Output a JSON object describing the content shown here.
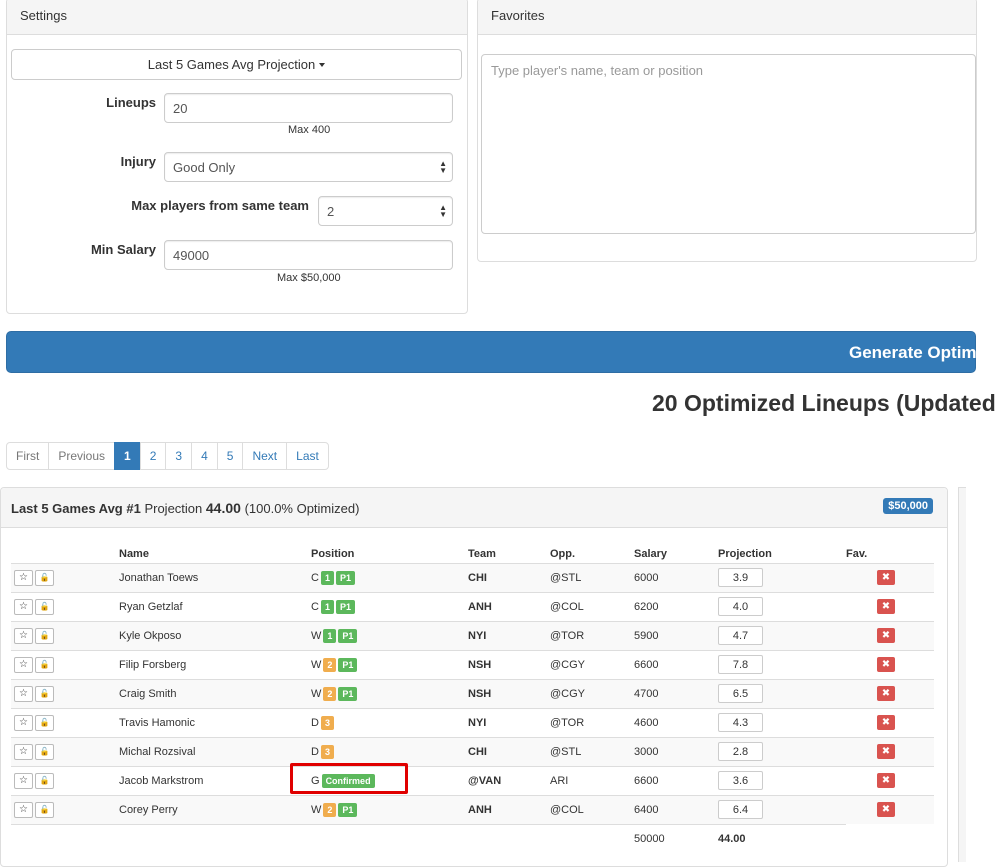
{
  "settings": {
    "title": "Settings",
    "projection_dropdown": "Last 5 Games Avg Projection",
    "lineups_label": "Lineups",
    "lineups_value": "20",
    "lineups_help": "Max 400",
    "injury_label": "Injury",
    "injury_value": "Good Only",
    "max_team_label": "Max players from same team",
    "max_team_value": "2",
    "min_salary_label": "Min Salary",
    "min_salary_value": "49000",
    "min_salary_help": "Max $50,000"
  },
  "favorites": {
    "title": "Favorites",
    "placeholder": "Type player's name, team or position"
  },
  "generate_button": "Generate Optim",
  "results_heading": "20 Optimized Lineups (Updated",
  "pagination": [
    "First",
    "Previous",
    "1",
    "2",
    "3",
    "4",
    "5",
    "Next",
    "Last"
  ],
  "lineup": {
    "title_prefix": "Last 5 Games Avg #1",
    "title_proj_label": "Projection",
    "title_proj_value": "44.00",
    "title_optimized": "(100.0% Optimized)",
    "salary_badge": "$50,000",
    "columns": [
      "Name",
      "Position",
      "Team",
      "Opp.",
      "Salary",
      "Projection",
      "Fav."
    ],
    "rows": [
      {
        "name": "Jonathan Toews",
        "pos": "C",
        "tags": [
          {
            "t": "1",
            "c": "green"
          },
          {
            "t": "P1",
            "c": "green"
          }
        ],
        "team": "CHI",
        "opp": "@STL",
        "salary": "6000",
        "proj": "3.9"
      },
      {
        "name": "Ryan Getzlaf",
        "pos": "C",
        "tags": [
          {
            "t": "1",
            "c": "green"
          },
          {
            "t": "P1",
            "c": "green"
          }
        ],
        "team": "ANH",
        "opp": "@COL",
        "salary": "6200",
        "proj": "4.0"
      },
      {
        "name": "Kyle Okposo",
        "pos": "W",
        "tags": [
          {
            "t": "1",
            "c": "green"
          },
          {
            "t": "P1",
            "c": "green"
          }
        ],
        "team": "NYI",
        "opp": "@TOR",
        "salary": "5900",
        "proj": "4.7"
      },
      {
        "name": "Filip Forsberg",
        "pos": "W",
        "tags": [
          {
            "t": "2",
            "c": "orange"
          },
          {
            "t": "P1",
            "c": "green"
          }
        ],
        "team": "NSH",
        "opp": "@CGY",
        "salary": "6600",
        "proj": "7.8"
      },
      {
        "name": "Craig Smith",
        "pos": "W",
        "tags": [
          {
            "t": "2",
            "c": "orange"
          },
          {
            "t": "P1",
            "c": "green"
          }
        ],
        "team": "NSH",
        "opp": "@CGY",
        "salary": "4700",
        "proj": "6.5"
      },
      {
        "name": "Travis Hamonic",
        "pos": "D",
        "tags": [
          {
            "t": "3",
            "c": "orange"
          }
        ],
        "team": "NYI",
        "opp": "@TOR",
        "salary": "4600",
        "proj": "4.3"
      },
      {
        "name": "Michal Rozsival",
        "pos": "D",
        "tags": [
          {
            "t": "3",
            "c": "orange"
          }
        ],
        "team": "CHI",
        "opp": "@STL",
        "salary": "3000",
        "proj": "2.8"
      },
      {
        "name": "Jacob Markstrom",
        "pos": "G",
        "tags": [
          {
            "t": "Confirmed",
            "c": "green"
          }
        ],
        "team": "@VAN",
        "opp": "ARI",
        "salary": "6600",
        "proj": "3.6"
      },
      {
        "name": "Corey Perry",
        "pos": "W",
        "tags": [
          {
            "t": "2",
            "c": "orange"
          },
          {
            "t": "P1",
            "c": "green"
          }
        ],
        "team": "ANH",
        "opp": "@COL",
        "salary": "6400",
        "proj": "6.4"
      }
    ],
    "total_salary": "50000",
    "total_proj": "44.00"
  },
  "colors": {
    "primary": "#337ab7",
    "success": "#5cb85c",
    "warning": "#f0ad4e",
    "danger": "#d9534f",
    "highlight": "#e00000"
  }
}
